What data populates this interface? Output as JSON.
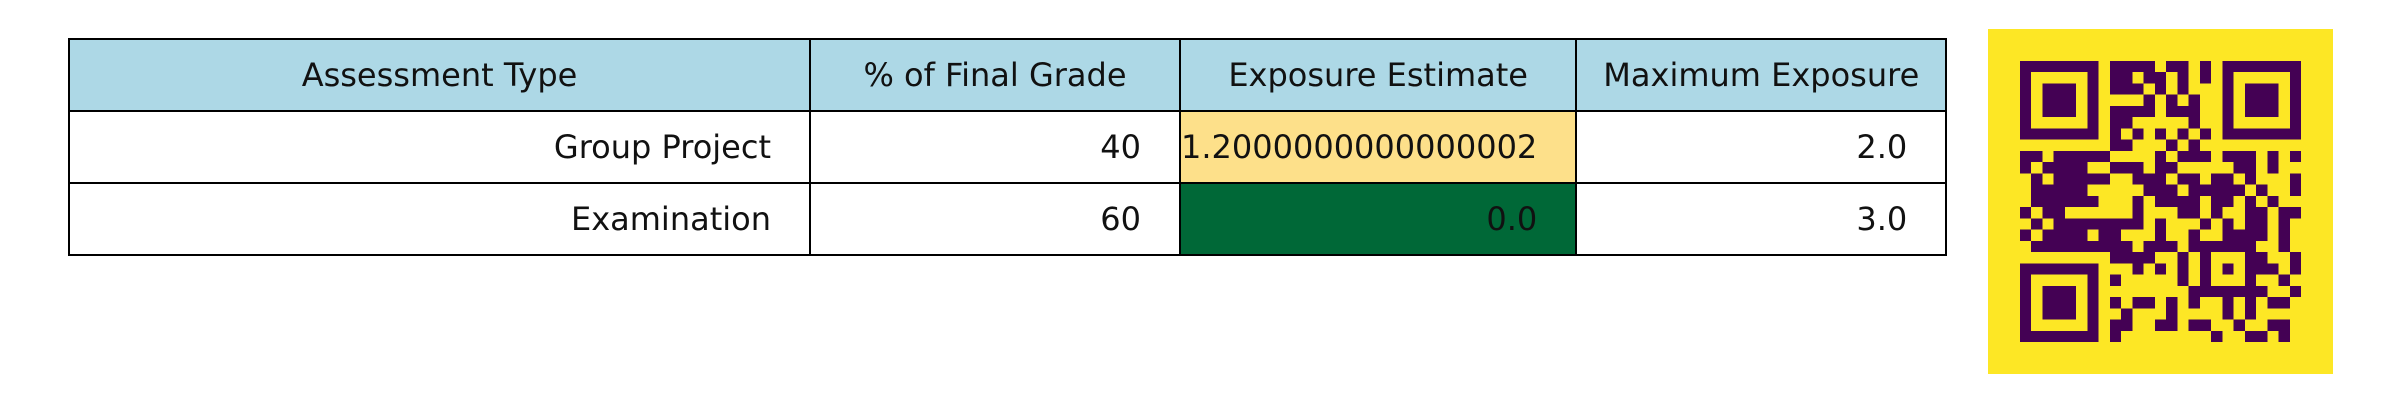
{
  "table": {
    "headers": [
      "Assessment Type",
      "% of Final Grade",
      "Exposure Estimate",
      "Maximum Exposure"
    ],
    "rows": [
      {
        "assessment_type": "Group Project",
        "percent_of_final_grade": "40",
        "exposure_estimate": "1.2000000000000002",
        "maximum_exposure": "2.0",
        "exposure_color": "#fde08a"
      },
      {
        "assessment_type": "Examination",
        "percent_of_final_grade": "60",
        "exposure_estimate": "0.0",
        "maximum_exposure": "3.0",
        "exposure_color": "#006837"
      }
    ],
    "header_color": "#add8e6"
  },
  "qr": {
    "icon": "qr-code-icon",
    "background_color": "#fde725",
    "module_color": "#440154"
  }
}
